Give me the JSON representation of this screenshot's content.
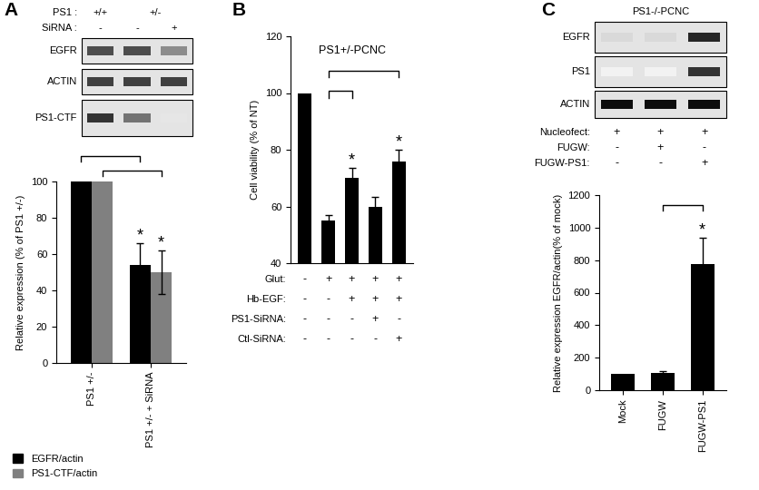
{
  "chart_data": [
    {
      "type": "bar",
      "panel_label": "A",
      "blot": {
        "header": [
          {
            "label": "PS1 :",
            "groups": [
              {
                "text": "+/+",
                "lanes": [
                  0
                ]
              },
              {
                "text": "+/-",
                "lanes": [
                  1,
                  2
                ]
              }
            ]
          },
          {
            "label": "SiRNA :",
            "groups": [
              {
                "text": "-",
                "lanes": [
                  0
                ]
              },
              {
                "text": "-",
                "lanes": [
                  1
                ]
              },
              {
                "text": "+",
                "lanes": [
                  2
                ]
              }
            ]
          }
        ],
        "rows": [
          {
            "label": "EGFR",
            "intensity": [
              0.7,
              0.7,
              0.45
            ]
          },
          {
            "label": "ACTIN",
            "intensity": [
              0.75,
              0.75,
              0.75
            ]
          },
          {
            "label": "PS1-CTF",
            "intensity": [
              0.8,
              0.55,
              0.1
            ]
          }
        ]
      },
      "categories": [
        "PS1 +/-",
        "PS1 +/- + SiRNA"
      ],
      "series": [
        {
          "name": "EGFR/actin",
          "color": "#000000",
          "values": [
            100,
            54
          ],
          "errors": [
            0,
            12
          ]
        },
        {
          "name": "PS1-CTF/actin",
          "color": "#808080",
          "values": [
            100,
            50
          ],
          "errors": [
            0,
            12
          ]
        }
      ],
      "y_label": "Relative expression (% of PS1 +/-)",
      "ylim": [
        0,
        100
      ],
      "yticks": [
        0,
        20,
        40,
        60,
        80,
        100
      ],
      "legend": "lower left",
      "comparisons": [
        {
          "from": [
            0,
            0
          ],
          "to": [
            1,
            0
          ],
          "text": "*"
        },
        {
          "from": [
            0,
            1
          ],
          "to": [
            1,
            1
          ],
          "text": "*"
        }
      ]
    },
    {
      "type": "bar",
      "panel_label": "B",
      "title": "PS1+/-PCNC",
      "categories": [
        null,
        null,
        null,
        null,
        null
      ],
      "values": [
        100,
        55,
        70,
        60,
        76
      ],
      "errors": [
        0,
        2,
        3.5,
        3.5,
        4
      ],
      "color": "#000000",
      "y_label": "Cell viability (% of NT)",
      "ylim": [
        40,
        120
      ],
      "yticks": [
        40,
        60,
        80,
        100,
        120
      ],
      "tick_labels": "y",
      "conditions": [
        {
          "label": "Glut:",
          "values": [
            "-",
            "+",
            "+",
            "+",
            "+"
          ]
        },
        {
          "label": "Hb-EGF:",
          "values": [
            "-",
            "-",
            "+",
            "+",
            "+"
          ]
        },
        {
          "label": "PS1-SiRNA:",
          "values": [
            "-",
            "-",
            "-",
            "+",
            "-"
          ]
        },
        {
          "label": "Ctl-SiRNA:",
          "values": [
            "-",
            "-",
            "-",
            "-",
            "+"
          ]
        }
      ],
      "comparisons": [
        {
          "from": 1,
          "to": 2,
          "text": "*"
        },
        {
          "from": 1,
          "to": 4,
          "text": "*"
        }
      ]
    },
    {
      "type": "bar",
      "panel_label": "C",
      "blot": {
        "title": "PS1-/-PCNC",
        "rows": [
          {
            "label": "EGFR",
            "intensity": [
              0.15,
              0.15,
              0.85
            ]
          },
          {
            "label": "PS1",
            "intensity": [
              0.05,
              0.05,
              0.8
            ]
          },
          {
            "label": "ACTIN",
            "intensity": [
              0.95,
              0.95,
              0.95
            ]
          }
        ],
        "conditions": [
          {
            "label": "Nucleofect:",
            "values": [
              "+",
              "+",
              "+"
            ]
          },
          {
            "label": "FUGW:",
            "values": [
              "-",
              "+",
              "-"
            ]
          },
          {
            "label": "FUGW-PS1:",
            "values": [
              "-",
              "-",
              "+"
            ]
          }
        ]
      },
      "categories": [
        "Mock",
        "FUGW",
        "FUGW-PS1"
      ],
      "values": [
        100,
        105,
        775
      ],
      "errors": [
        0,
        10,
        160
      ],
      "color": "#000000",
      "y_label": "Relative expression EGFR/actin(% of mock)",
      "ylim": [
        0,
        1200
      ],
      "yticks": [
        0,
        200,
        400,
        600,
        800,
        1000,
        1200
      ],
      "comparisons": [
        {
          "from": 1,
          "to": 2,
          "text": "*"
        }
      ]
    }
  ]
}
